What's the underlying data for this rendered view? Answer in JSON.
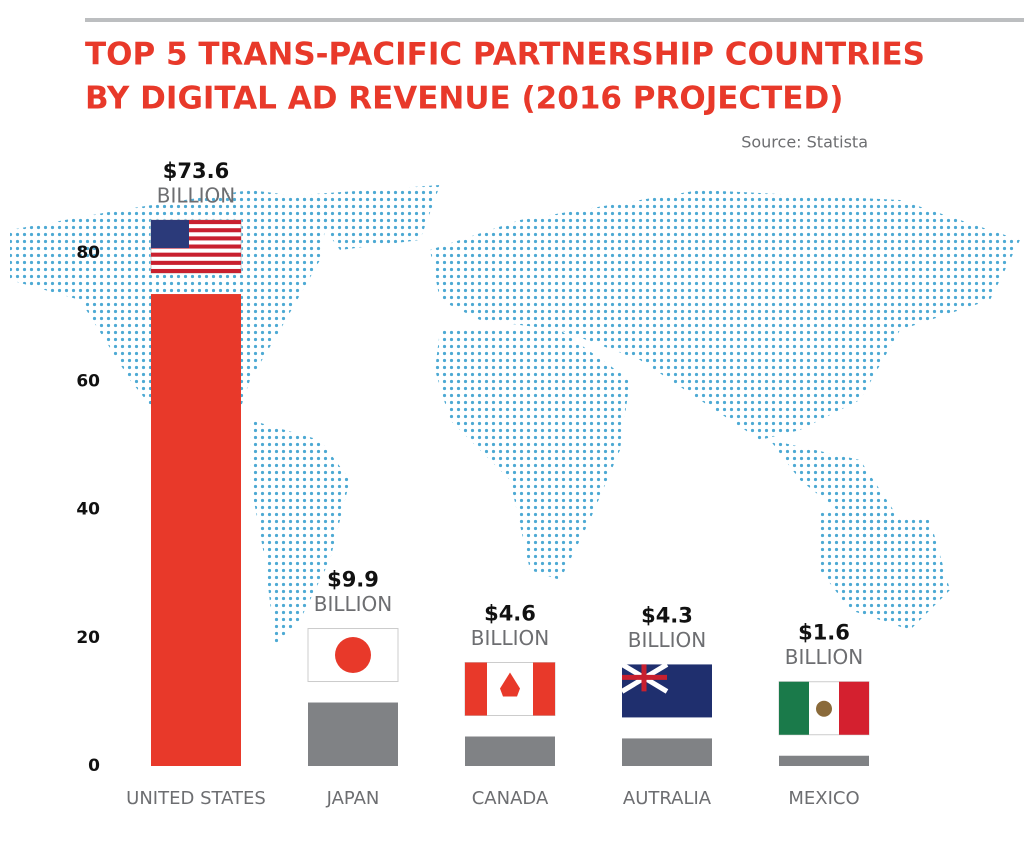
{
  "chart_data": {
    "type": "bar",
    "title": [
      "TOP 5 TRANS-PACIFIC PARTNERSHIP COUNTRIES",
      "BY DIGITAL AD REVENUE (2016 PROJECTED)"
    ],
    "source": "Source: Statista",
    "categories": [
      "UNITED STATES",
      "JAPAN",
      "CANADA",
      "AUTRALIA",
      "MEXICO"
    ],
    "values": [
      73.6,
      9.9,
      4.6,
      4.3,
      1.6
    ],
    "value_labels": [
      "$73.6",
      "$9.9",
      "$4.6",
      "$4.3",
      "$1.6"
    ],
    "value_label_unit": "BILLION",
    "colors": [
      "#e8392a",
      "#808285",
      "#808285",
      "#808285",
      "#808285"
    ],
    "ylim": [
      0,
      80
    ],
    "yticks": [
      0,
      20,
      40,
      60,
      80
    ]
  }
}
